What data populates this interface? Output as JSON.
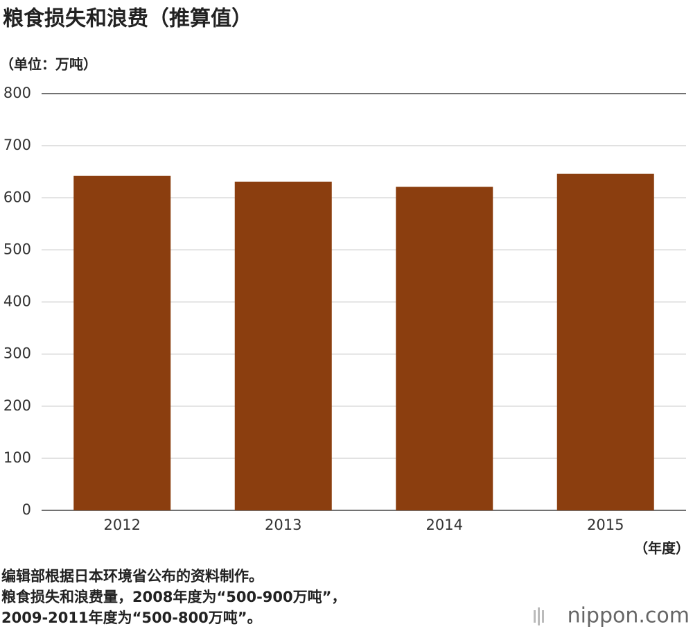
{
  "chart_data": {
    "type": "bar",
    "title": "粮食损失和浪费（推算值）",
    "y_label": "（单位：万吨）",
    "x_label": "（年度）",
    "categories": [
      "2012",
      "2013",
      "2014",
      "2015"
    ],
    "values": [
      642,
      631,
      621,
      646
    ],
    "color": "#8b3e0f",
    "ylim": [
      0,
      800
    ],
    "yticks": [
      0,
      100,
      200,
      300,
      400,
      500,
      600,
      700,
      800
    ],
    "grid": true,
    "notes": [
      "编辑部根据日本环境省公布的资料制作。",
      "粮食损失和浪费量，2008年度为“500-900万吨”，",
      "2009-2011年度为“500-800万吨”。"
    ],
    "brand": "nippon.com"
  }
}
